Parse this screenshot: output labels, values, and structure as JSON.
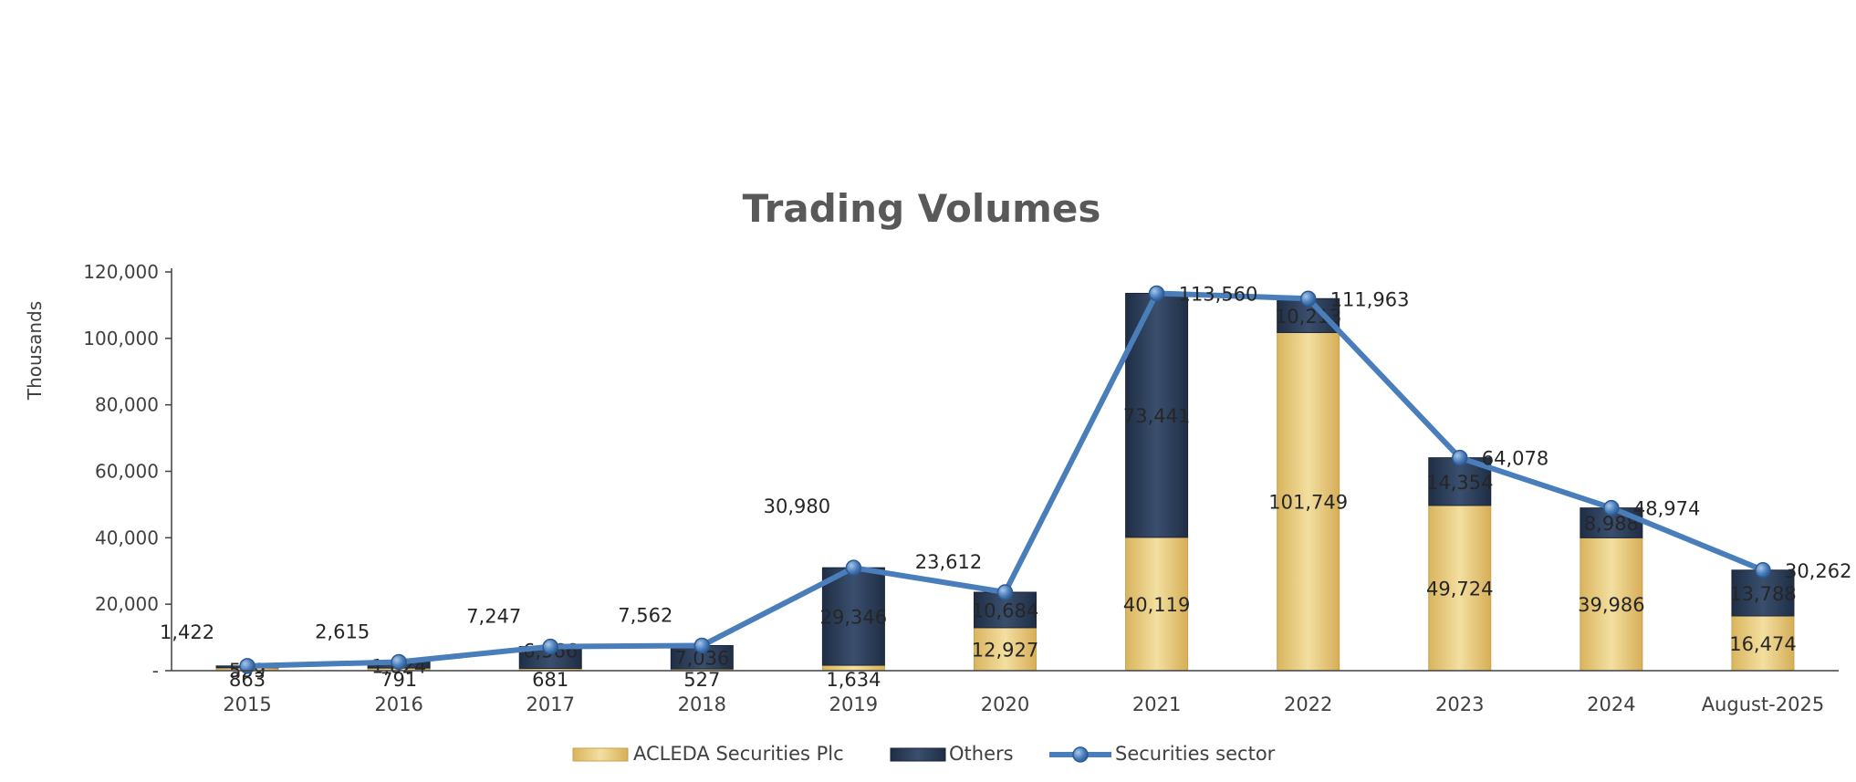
{
  "chart_data": {
    "type": "bar",
    "title": "Trading Volumes",
    "xlabel": "",
    "ylabel": "Thousands",
    "categories": [
      "2015",
      "2016",
      "2017",
      "2018",
      "2019",
      "2020",
      "2021",
      "2022",
      "2023",
      "2024",
      "August-2025"
    ],
    "y_ticks": [
      "-",
      "20,000",
      "40,000",
      "60,000",
      "80,000",
      "100,000",
      "120,000"
    ],
    "ylim": [
      0,
      120000
    ],
    "stacked": true,
    "grid": false,
    "legend_position": "bottom",
    "series": [
      {
        "name": "ACLEDA Securities Plc",
        "kind": "bar",
        "color": "#E8C97A",
        "values": [
          863,
          791,
          681,
          527,
          1634,
          12927,
          40119,
          101749,
          49724,
          39986,
          16474
        ],
        "labels": [
          "863",
          "791",
          "681",
          "527",
          "1,634",
          "12,927",
          "40,119",
          "101,749",
          "49,724",
          "39,986",
          "16,474"
        ]
      },
      {
        "name": "Others",
        "kind": "bar",
        "color": "#2B3D57",
        "values": [
          559,
          1824,
          6566,
          7036,
          29346,
          10684,
          73441,
          10213,
          14354,
          8988,
          13788
        ],
        "labels": [
          "559",
          "1,824",
          "6,566",
          "7,036",
          "29,346",
          "10,684",
          "73,441",
          "10,213",
          "14,354",
          "8,988",
          "13,788"
        ]
      },
      {
        "name": "Securities sector",
        "kind": "line",
        "color": "#4A7EBB",
        "values": [
          1422,
          2615,
          7247,
          7562,
          30980,
          23612,
          113560,
          111963,
          64078,
          48974,
          30262
        ],
        "labels": [
          "1,422",
          "2,615",
          "7,247",
          "7,562",
          "30,980",
          "23,612",
          "113,560",
          "111,963",
          "64,078",
          "48,974",
          "30,262"
        ]
      }
    ]
  }
}
